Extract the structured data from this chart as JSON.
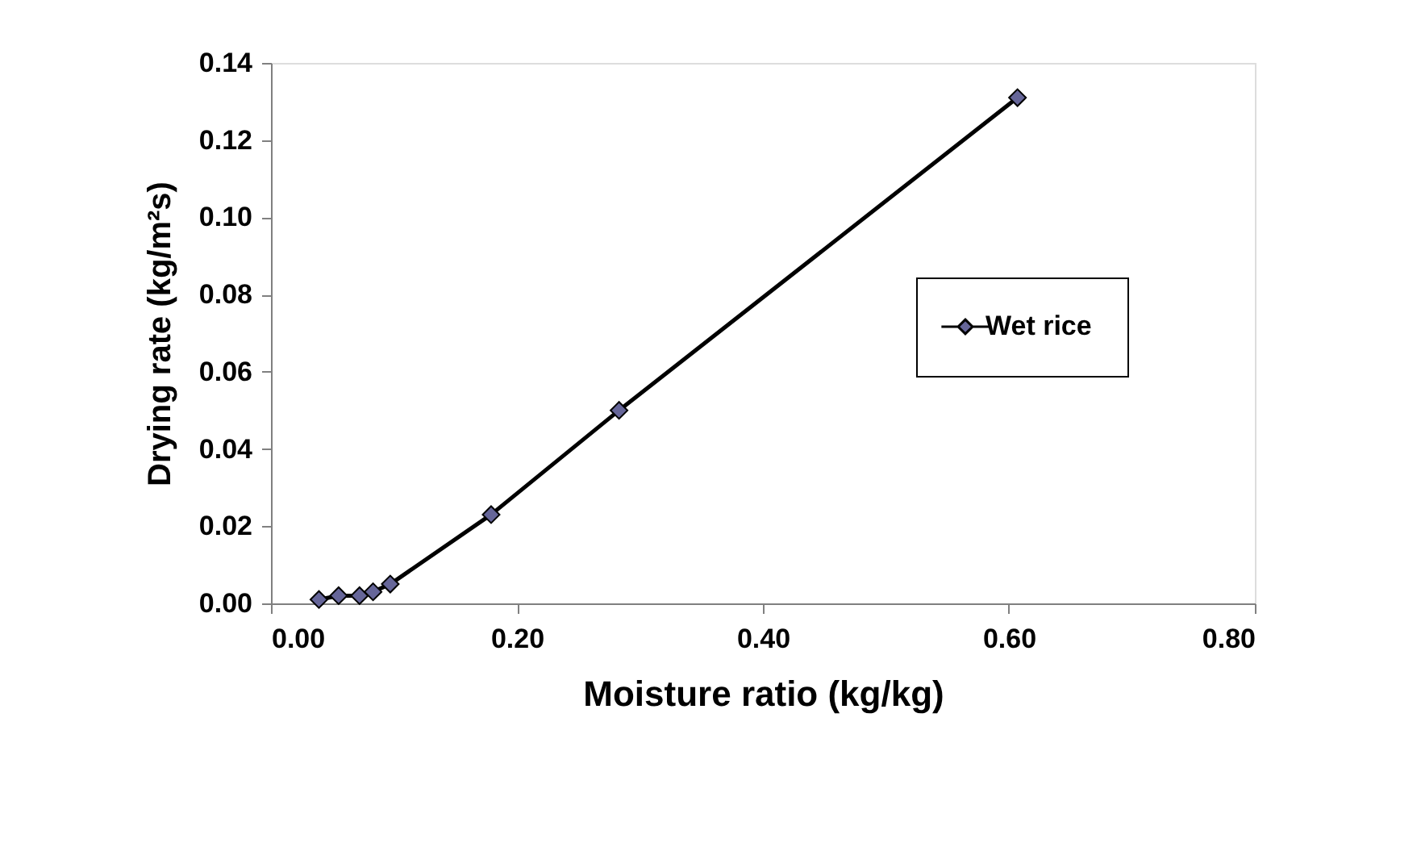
{
  "chart_data": {
    "type": "line",
    "xlabel": "Moisture ratio (kg/kg)",
    "ylabel": "Drying rate (kg/m²s)",
    "x": [
      0.039,
      0.055,
      0.072,
      0.083,
      0.097,
      0.179,
      0.283,
      0.607
    ],
    "series": [
      {
        "name": "Wet rice",
        "color": "#666699",
        "values": [
          0.001,
          0.002,
          0.002,
          0.003,
          0.005,
          0.023,
          0.05,
          0.131
        ]
      }
    ],
    "xlim": [
      0,
      0.8
    ],
    "xticks": [
      {
        "value": 0,
        "label": "0.00"
      },
      {
        "value": 0.2,
        "label": "0.20"
      },
      {
        "value": 0.4,
        "label": "0.40"
      },
      {
        "value": 0.6,
        "label": "0.60"
      },
      {
        "value": 0.8,
        "label": "0.80"
      }
    ],
    "ylim": [
      0,
      0.14
    ],
    "yticks": [
      {
        "value": 0,
        "label": "0.00"
      },
      {
        "value": 0.02,
        "label": "0.02"
      },
      {
        "value": 0.04,
        "label": "0.04"
      },
      {
        "value": 0.06,
        "label": "0.06"
      },
      {
        "value": 0.08,
        "label": "0.08"
      },
      {
        "value": 0.1,
        "label": "0.10"
      },
      {
        "value": 0.12,
        "label": "0.12"
      },
      {
        "value": 0.14,
        "label": "0.14"
      }
    ],
    "grid": false,
    "legend": "right",
    "marker": "diamond",
    "line_style": "solid"
  }
}
